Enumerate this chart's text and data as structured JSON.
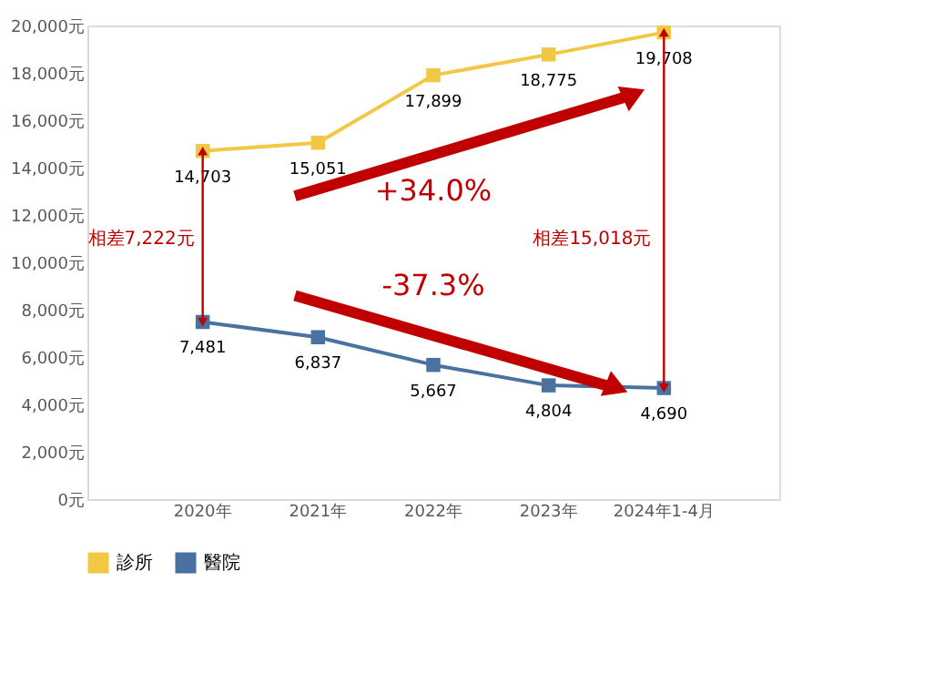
{
  "chart_data": {
    "type": "line",
    "categories": [
      "2020年",
      "2021年",
      "2022年",
      "2023年",
      "2024年1-4月"
    ],
    "series": [
      {
        "name": "診所",
        "color": "#f2c744",
        "values": [
          14703,
          15051,
          17899,
          18775,
          19708
        ],
        "value_labels": [
          "14,703",
          "15,051",
          "17,899",
          "18,775",
          "19,708"
        ]
      },
      {
        "name": "醫院",
        "color": "#4a72a0",
        "values": [
          7481,
          6837,
          5667,
          4804,
          4690
        ],
        "value_labels": [
          "7,481",
          "6,837",
          "5,667",
          "4,804",
          "4,690"
        ]
      }
    ],
    "ylim": [
      0,
      20000
    ],
    "yticks": [
      {
        "value": 0,
        "label": "0元"
      },
      {
        "value": 2000,
        "label": "2,000元"
      },
      {
        "value": 4000,
        "label": "4,000元"
      },
      {
        "value": 6000,
        "label": "6,000元"
      },
      {
        "value": 8000,
        "label": "8,000元"
      },
      {
        "value": 10000,
        "label": "10,000元"
      },
      {
        "value": 12000,
        "label": "12,000元"
      },
      {
        "value": 14000,
        "label": "14,000元"
      },
      {
        "value": 16000,
        "label": "16,000元"
      },
      {
        "value": 18000,
        "label": "18,000元"
      },
      {
        "value": 20000,
        "label": "20,000元"
      }
    ],
    "annotations": [
      "+34.0%",
      "-37.3%",
      "相差7,222元",
      "相差15,018元"
    ],
    "marker": "square",
    "legend": "bottom",
    "grid": false
  }
}
